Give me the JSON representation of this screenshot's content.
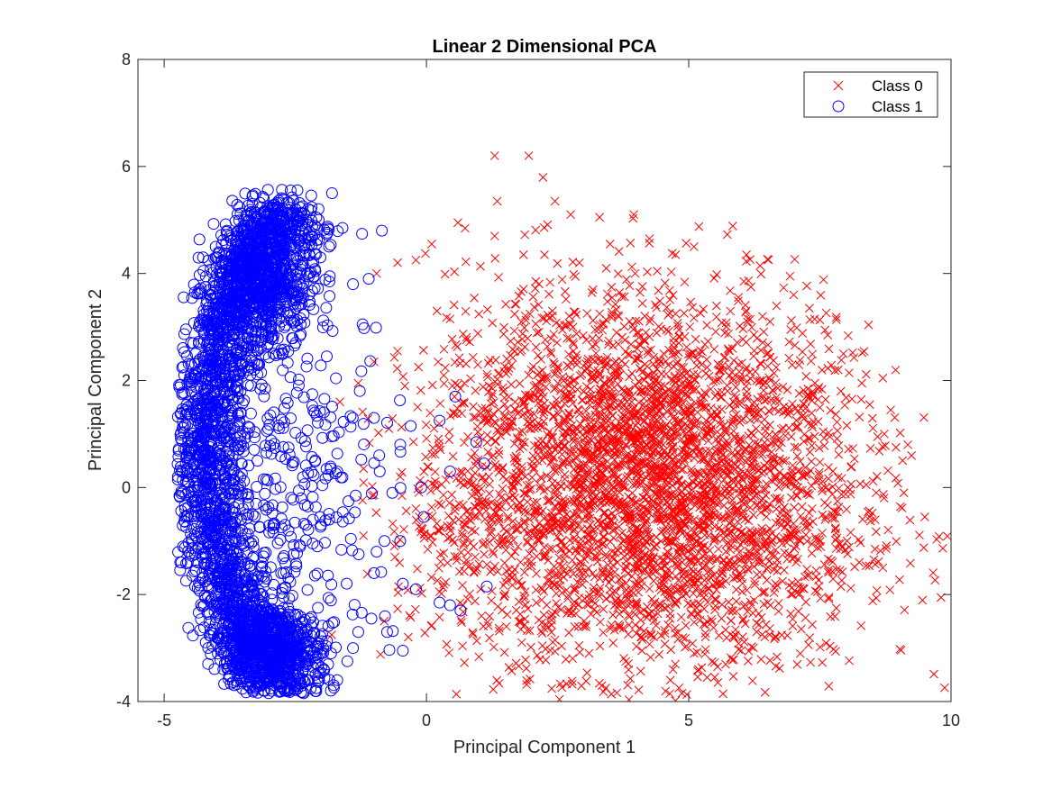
{
  "chart_data": {
    "type": "scatter",
    "title": "Linear 2 Dimensional PCA",
    "xlabel": "Principal Component 1",
    "ylabel": "Principal Component 2",
    "xlim": [
      -5.5,
      10
    ],
    "ylim": [
      -4,
      8
    ],
    "xticks": [
      -5,
      0,
      5,
      10
    ],
    "yticks": [
      -4,
      -2,
      0,
      2,
      4,
      6,
      8
    ],
    "grid": false,
    "legend_position": "top-right",
    "series": [
      {
        "name": "Class 0",
        "marker": "x",
        "color": "#ff0000",
        "points": [
          [
            1.3,
            6.2
          ],
          [
            1.95,
            6.2
          ],
          [
            2.45,
            5.35
          ],
          [
            1.35,
            5.35
          ],
          [
            2.75,
            5.1
          ],
          [
            3.3,
            5.05
          ],
          [
            0.6,
            4.95
          ],
          [
            1.3,
            4.7
          ],
          [
            4.25,
            4.65
          ],
          [
            5.1,
            4.5
          ],
          [
            3.5,
            4.55
          ],
          [
            4.75,
            4.35
          ],
          [
            6.1,
            4.35
          ],
          [
            0.1,
            4.55
          ],
          [
            1.85,
            4.35
          ],
          [
            -0.55,
            4.2
          ],
          [
            -0.2,
            4.25
          ],
          [
            2.25,
            4.35
          ],
          [
            6.05,
            3.85
          ],
          [
            7.0,
            3.6
          ],
          [
            7.3,
            3.35
          ],
          [
            7.4,
            3.15
          ],
          [
            6.55,
            3.1
          ],
          [
            7.65,
            2.85
          ],
          [
            7.95,
            2.5
          ],
          [
            7.85,
            2.2
          ],
          [
            8.3,
            1.95
          ],
          [
            7.9,
            1.8
          ],
          [
            8.45,
            1.55
          ],
          [
            8.85,
            1.45
          ],
          [
            8.6,
            0.95
          ],
          [
            8.95,
            0.75
          ],
          [
            9.1,
            -0.1
          ],
          [
            8.45,
            -0.55
          ],
          [
            8.55,
            -1.15
          ],
          [
            8.25,
            -1.4
          ],
          [
            8.7,
            -1.5
          ],
          [
            7.9,
            -1.85
          ],
          [
            7.45,
            -1.95
          ],
          [
            7.1,
            -2.0
          ],
          [
            6.4,
            -2.75
          ],
          [
            6.0,
            -3.05
          ],
          [
            5.55,
            -3.35
          ],
          [
            4.7,
            -3.4
          ],
          [
            4.65,
            -3.6
          ],
          [
            5.35,
            -3.55
          ],
          [
            3.8,
            -3.25
          ],
          [
            3.1,
            -3.1
          ],
          [
            2.45,
            -2.85
          ],
          [
            1.8,
            -2.65
          ],
          [
            1.05,
            -2.4
          ],
          [
            0.7,
            -2.2
          ],
          [
            0.25,
            -1.95
          ],
          [
            -0.6,
            -1.3
          ],
          [
            -1.2,
            -0.9
          ],
          [
            -1.65,
            1.6
          ],
          [
            -1.3,
            1.95
          ],
          [
            -1.0,
            2.35
          ],
          [
            -0.55,
            2.55
          ],
          [
            -0.95,
            4.0
          ],
          [
            0.2,
            3.3
          ],
          [
            0.45,
            3.15
          ],
          [
            6.8,
            0.5
          ],
          [
            7.2,
            0.2
          ],
          [
            7.6,
            -0.6
          ],
          [
            5.2,
            2.5
          ],
          [
            3.3,
            2.1
          ],
          [
            2.0,
            0.4
          ],
          [
            2.7,
            -0.6
          ],
          [
            4.0,
            -1.4
          ]
        ],
        "clusters": [
          {
            "cx": 4.5,
            "cy": -0.5,
            "sx": 1.9,
            "sy": 1.5,
            "n": 2600
          },
          {
            "cx": 2.8,
            "cy": 1.5,
            "sx": 1.4,
            "sy": 1.3,
            "n": 700
          },
          {
            "cx": 5.6,
            "cy": 1.6,
            "sx": 1.3,
            "sy": 1.2,
            "n": 450
          },
          {
            "cx": 1.2,
            "cy": -0.6,
            "sx": 1.0,
            "sy": 1.2,
            "n": 250
          }
        ]
      },
      {
        "name": "Class 1",
        "marker": "o",
        "color": "#0000ff",
        "points": [
          [
            -1.8,
            5.5
          ],
          [
            -2.85,
            5.2
          ],
          [
            -2.45,
            5.05
          ],
          [
            -1.6,
            4.85
          ],
          [
            -0.85,
            4.8
          ],
          [
            -2.1,
            4.55
          ],
          [
            -1.1,
            3.9
          ],
          [
            -1.4,
            3.8
          ],
          [
            -1.85,
            3.85
          ],
          [
            -1.9,
            2.45
          ],
          [
            -1.0,
            1.3
          ],
          [
            -0.3,
            1.15
          ],
          [
            0.25,
            1.25
          ],
          [
            0.55,
            1.7
          ],
          [
            -0.5,
            0.8
          ],
          [
            -0.9,
            0.6
          ],
          [
            0.95,
            0.85
          ],
          [
            1.1,
            0.45
          ],
          [
            0.45,
            0.3
          ],
          [
            -0.1,
            0.0
          ],
          [
            -0.65,
            -0.1
          ],
          [
            -1.35,
            -0.15
          ],
          [
            -0.05,
            -0.55
          ],
          [
            -0.5,
            -1.0
          ],
          [
            -0.8,
            -1.0
          ],
          [
            -0.95,
            -1.2
          ],
          [
            -1.0,
            -1.6
          ],
          [
            -0.2,
            -1.9
          ],
          [
            -0.45,
            -1.8
          ],
          [
            0.25,
            -2.15
          ],
          [
            0.45,
            -2.2
          ],
          [
            0.65,
            -2.3
          ],
          [
            1.15,
            -1.85
          ],
          [
            -1.05,
            -2.45
          ],
          [
            -1.3,
            -2.7
          ],
          [
            -0.75,
            -2.7
          ],
          [
            -1.4,
            -3.0
          ],
          [
            -0.45,
            -3.05
          ],
          [
            -1.7,
            -3.6
          ],
          [
            -2.1,
            -3.75
          ],
          [
            -2.7,
            -3.8
          ],
          [
            -2.95,
            -3.8
          ],
          [
            -4.45,
            0.2
          ],
          [
            -4.6,
            -0.4
          ],
          [
            -4.5,
            0.7
          ],
          [
            -4.35,
            2.35
          ],
          [
            -4.15,
            2.95
          ],
          [
            -3.6,
            4.4
          ],
          [
            -3.2,
            4.6
          ],
          [
            -2.6,
            4.7
          ]
        ],
        "clusters": [
          {
            "arc": true,
            "cx": -2.6,
            "cy": 0.7,
            "r": 4.4,
            "a0": 100,
            "a1": 260,
            "jx": 0.45,
            "jy": 0.35,
            "n": 2600
          },
          {
            "cx": -3.0,
            "cy": 3.7,
            "sx": 0.45,
            "sy": 0.5,
            "n": 450
          },
          {
            "cx": -3.0,
            "cy": -3.0,
            "sx": 0.5,
            "sy": 0.35,
            "n": 450
          },
          {
            "cx": -2.4,
            "cy": 0.2,
            "sx": 0.9,
            "sy": 1.6,
            "n": 250
          }
        ]
      }
    ]
  }
}
